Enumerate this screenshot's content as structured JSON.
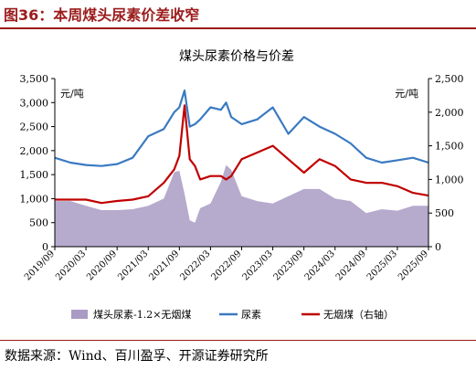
{
  "header": {
    "figure_title": "图36：本周煤头尿素价差收窄"
  },
  "footer": {
    "source": "数据来源：Wind、百川盈孚、开源证券研究所"
  },
  "colors": {
    "spread": "#a99bc4",
    "urea": "#3a7ac2",
    "coal": "#c00000",
    "title_red": "#9b1b1b"
  },
  "chart_data": {
    "type": "line",
    "title": "煤头尿素价格与价差",
    "y_left": {
      "unit": "元/吨",
      "lim": [
        0,
        3500
      ],
      "ticks": [
        0,
        500,
        1000,
        1500,
        2000,
        2500,
        3000,
        3500
      ],
      "tick_labels": [
        "0",
        "500",
        "1,000",
        "1,500",
        "2,000",
        "2,500",
        "3,000",
        "3,500"
      ]
    },
    "y_right": {
      "unit": "元/吨",
      "lim": [
        0,
        2500
      ],
      "ticks": [
        0,
        500,
        1000,
        1500,
        2000,
        2500
      ],
      "tick_labels": [
        "0",
        "500",
        "1,000",
        "1,500",
        "2,000",
        "2,500"
      ]
    },
    "x_ticks": [
      "2019/09",
      "2020/03",
      "2020/09",
      "2021/03",
      "2021/09",
      "2022/03",
      "2022/09",
      "2023/03",
      "2023/09",
      "2024/03",
      "2024/09",
      "2025/03",
      "2025/09"
    ],
    "legend": [
      "煤头尿素-1.2×无烟煤",
      "尿素",
      "无烟煤（右轴）"
    ],
    "legend_position": "bottom",
    "grid": false,
    "series": [
      {
        "name": "煤头尿素-1.2×无烟煤",
        "type": "area",
        "axis": "left",
        "x": [
          "2019/09",
          "2019/12",
          "2020/03",
          "2020/06",
          "2020/09",
          "2020/12",
          "2021/03",
          "2021/06",
          "2021/08",
          "2021/09",
          "2021/10",
          "2021/11",
          "2021/12",
          "2022/01",
          "2022/03",
          "2022/05",
          "2022/06",
          "2022/07",
          "2022/09",
          "2022/12",
          "2023/03",
          "2023/06",
          "2023/09",
          "2023/12",
          "2024/03",
          "2024/06",
          "2024/09",
          "2024/12",
          "2025/03",
          "2025/06",
          "2025/09"
        ],
        "y": [
          950,
          950,
          850,
          760,
          760,
          780,
          850,
          1000,
          1550,
          1580,
          1100,
          550,
          500,
          800,
          900,
          1350,
          1700,
          1600,
          1050,
          950,
          900,
          1050,
          1200,
          1200,
          1000,
          950,
          700,
          780,
          750,
          850,
          850
        ]
      },
      {
        "name": "尿素",
        "type": "line",
        "axis": "left",
        "x": [
          "2019/09",
          "2019/12",
          "2020/03",
          "2020/06",
          "2020/09",
          "2020/12",
          "2021/03",
          "2021/06",
          "2021/08",
          "2021/09",
          "2021/10",
          "2021/11",
          "2021/12",
          "2022/01",
          "2022/03",
          "2022/05",
          "2022/06",
          "2022/07",
          "2022/09",
          "2022/12",
          "2023/03",
          "2023/06",
          "2023/09",
          "2023/12",
          "2024/03",
          "2024/06",
          "2024/09",
          "2024/12",
          "2025/03",
          "2025/06",
          "2025/09"
        ],
        "y": [
          1850,
          1750,
          1700,
          1680,
          1720,
          1850,
          2300,
          2450,
          2800,
          2900,
          3250,
          2500,
          2550,
          2650,
          2900,
          2850,
          3000,
          2700,
          2550,
          2650,
          2900,
          2350,
          2700,
          2500,
          2350,
          2150,
          1850,
          1750,
          1800,
          1850,
          1750
        ]
      },
      {
        "name": "无烟煤（右轴）",
        "type": "line",
        "axis": "right",
        "x": [
          "2019/09",
          "2019/12",
          "2020/03",
          "2020/06",
          "2020/09",
          "2020/12",
          "2021/03",
          "2021/06",
          "2021/08",
          "2021/09",
          "2021/10",
          "2021/11",
          "2021/12",
          "2022/01",
          "2022/03",
          "2022/05",
          "2022/06",
          "2022/07",
          "2022/09",
          "2022/12",
          "2023/03",
          "2023/06",
          "2023/09",
          "2023/12",
          "2024/03",
          "2024/06",
          "2024/09",
          "2024/12",
          "2025/03",
          "2025/06",
          "2025/09"
        ],
        "y": [
          700,
          700,
          700,
          650,
          680,
          700,
          750,
          950,
          1150,
          1350,
          2100,
          1300,
          1200,
          1000,
          1050,
          1050,
          1000,
          1050,
          1300,
          1400,
          1500,
          1300,
          1100,
          1300,
          1200,
          1000,
          950,
          950,
          900,
          800,
          760
        ]
      }
    ]
  }
}
